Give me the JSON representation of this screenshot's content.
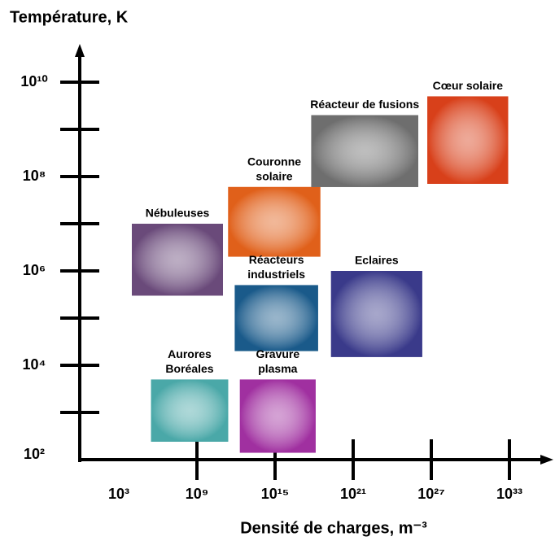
{
  "chart_data": {
    "type": "region-map",
    "y_label": "Température, K",
    "x_label": "Densité de charges, m⁻³",
    "log_x": true,
    "log_y": true,
    "xlim": [
      1,
      1e+35
    ],
    "ylim": [
      100,
      100000000000.0
    ],
    "xticks": [
      {
        "value": 1000.0,
        "label": "10³"
      },
      {
        "value": 1000000000.0,
        "label": "10⁹"
      },
      {
        "value": 1000000000000000.0,
        "label": "10¹⁵"
      },
      {
        "value": 1e+21,
        "label": "10²¹"
      },
      {
        "value": 1e+27,
        "label": "10²⁷"
      },
      {
        "value": 1e+33,
        "label": "10³³"
      }
    ],
    "yticks": [
      {
        "value": 100,
        "label": "10²"
      },
      {
        "value": 10000.0,
        "label": "10⁴"
      },
      {
        "value": 1000000.0,
        "label": "10⁶"
      },
      {
        "value": 100000000.0,
        "label": "10⁸"
      },
      {
        "value": 10000000000.0,
        "label": "10¹⁰"
      }
    ],
    "minor_yticks": [
      1000.0,
      100000.0,
      10000000.0,
      1000000000.0
    ],
    "regions": [
      {
        "label_lines": [
          "Nébuleuses"
        ],
        "color": "#6a4a7a",
        "x": [
          10000.0,
          100000000000.0
        ],
        "y": [
          300000.0,
          10000000.0
        ]
      },
      {
        "label_lines": [
          "Couronne",
          "solaire"
        ],
        "color": "#e0601a",
        "x": [
          250000000000.0,
          3e+18
        ],
        "y": [
          2000000.0,
          60000000.0
        ]
      },
      {
        "label_lines": [
          "Réacteur de fusions"
        ],
        "color": "#6e6e6e",
        "x": [
          6e+17,
          1e+26
        ],
        "y": [
          60000000.0,
          2000000000.0
        ]
      },
      {
        "label_lines": [
          "Cœur solaire"
        ],
        "color": "#d8401a",
        "x": [
          5e+26,
          8e+32
        ],
        "y": [
          70000000.0,
          5000000000.0
        ]
      },
      {
        "label_lines": [
          "Réacteurs",
          "industriels"
        ],
        "color": "#1a5a8a",
        "x": [
          800000000000.0,
          2e+18
        ],
        "y": [
          20000.0,
          500000.0
        ]
      },
      {
        "label_lines": [
          "Eclaires"
        ],
        "color": "#3a3a8a",
        "x": [
          2e+19,
          2e+26
        ],
        "y": [
          15000.0,
          1000000.0
        ]
      },
      {
        "label_lines": [
          "Aurores",
          "Boréales"
        ],
        "color": "#4aa8a8",
        "x": [
          300000.0,
          250000000000.0
        ],
        "y": [
          240,
          5000.0
        ]
      },
      {
        "label_lines": [
          "Gravure",
          "plasma"
        ],
        "color": "#a030a0",
        "x": [
          2000000000000.0,
          1.3e+18
        ],
        "y": [
          140,
          5000.0
        ]
      }
    ]
  }
}
